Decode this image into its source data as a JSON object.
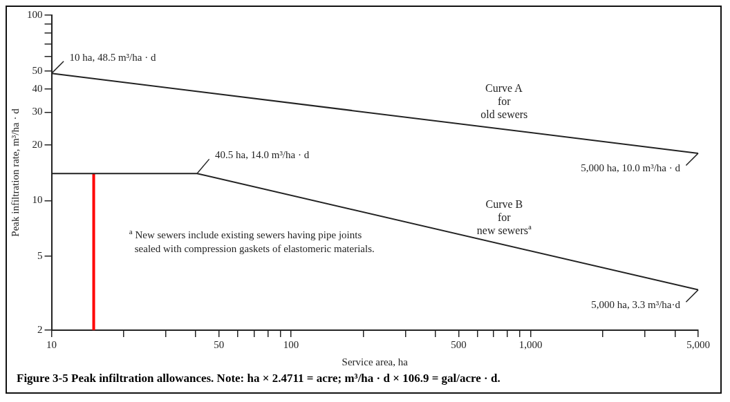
{
  "chart_data": {
    "type": "line",
    "xlabel": "Service area, ha",
    "ylabel": "Peak infiltration rate, m³/ha · d",
    "log": "xy",
    "grid": false,
    "legend": false,
    "marker": "none",
    "line_style": "solid",
    "xlim": [
      10,
      5000
    ],
    "ylim": [
      2,
      100
    ],
    "xticks": [
      10,
      {
        "value": 20,
        "label": null
      },
      {
        "value": 30,
        "label": null
      },
      {
        "value": 40,
        "label": null
      },
      50,
      {
        "value": 60,
        "label": null
      },
      {
        "value": 70,
        "label": null
      },
      {
        "value": 80,
        "label": null
      },
      {
        "value": 90,
        "label": null
      },
      100,
      {
        "value": 200,
        "label": null
      },
      {
        "value": 300,
        "label": null
      },
      {
        "value": 400,
        "label": null
      },
      500,
      {
        "value": 600,
        "label": null
      },
      {
        "value": 700,
        "label": null
      },
      {
        "value": 800,
        "label": null
      },
      {
        "value": 900,
        "label": null
      },
      {
        "value": 1000,
        "label": "1,000"
      },
      {
        "value": 2000,
        "label": null
      },
      {
        "value": 3000,
        "label": null
      },
      {
        "value": 4000,
        "label": null
      },
      {
        "value": 5000,
        "label": "5,000"
      }
    ],
    "yticks": [
      2,
      5,
      10,
      20,
      30,
      40,
      50,
      {
        "value": 60,
        "label": null
      },
      {
        "value": 70,
        "label": null
      },
      {
        "value": 80,
        "label": null
      },
      {
        "value": 90,
        "label": null
      },
      100
    ],
    "series": [
      {
        "name": "Curve A\nfor\nold sewers",
        "color": "#222222",
        "x": [
          10,
          5000
        ],
        "values": [
          48.5,
          18
        ]
      },
      {
        "name": "Curve B\nfor\nnew sewers$^{a}$",
        "color": "#222222",
        "x": [
          10,
          40.5,
          5000
        ],
        "values": [
          14,
          14,
          3.3
        ]
      },
      {
        "color": "#ff0000",
        "x": [
          15,
          15
        ],
        "values": [
          2,
          14
        ]
      }
    ],
    "annotations": [
      {
        "text": "10 ha, 48.5 m³/ha · d",
        "x": 10,
        "y": 48.5
      },
      {
        "text": "40.5 ha, 14.0 m³/ha · d",
        "x": 40.5,
        "y": 14
      },
      {
        "text": "5,000 ha, 10.0 m³/ha · d",
        "x": 5000,
        "y": 18
      },
      {
        "text": "5,000 ha, 3.3 m³/ha·d",
        "x": 5000,
        "y": 3.3
      },
      "$^{a}$ New sewers include existing sewers having pipe joints\nsealed with compression gaskets of elastomeric materials.",
      "Figure 3-5  Peak infiltration allowances. Note: ha × 2.4711 = acre; m³/ha · d × 106.9 = gal/acre · d."
    ]
  }
}
